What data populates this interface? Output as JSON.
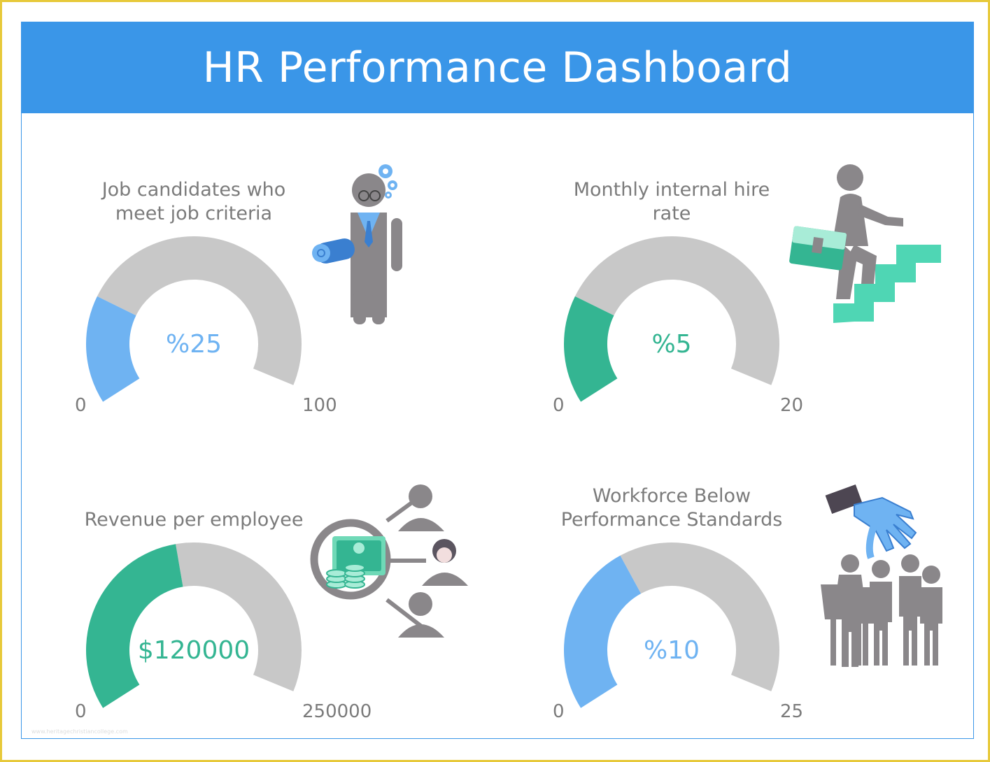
{
  "title": "HR Performance Dashboard",
  "colors": {
    "header": "#3a96e8",
    "track": "#c8c8c8",
    "blue": "#6fb3f2",
    "green": "#34b592",
    "label": "#7b7b7b"
  },
  "chart_data": [
    {
      "type": "gauge",
      "title": [
        "Job candidates who",
        "meet job criteria"
      ],
      "min": 0,
      "max": 100,
      "value": 25,
      "min_label": "0",
      "max_label": "100",
      "value_label": "%25",
      "color": "blue",
      "icon": "businessman-with-blueprint-icon"
    },
    {
      "type": "gauge",
      "title": [
        "Monthly internal hire",
        "rate"
      ],
      "min": 0,
      "max": 20,
      "value": 5,
      "min_label": "0",
      "max_label": "20",
      "value_label": "%5",
      "color": "green",
      "icon": "man-climbing-stairs-icon"
    },
    {
      "type": "gauge",
      "title": [
        "Revenue per employee"
      ],
      "min": 0,
      "max": 250000,
      "value": 120000,
      "min_label": "0",
      "max_label": "250000",
      "value_label": "$120000",
      "color": "green",
      "icon": "money-magnifier-people-icon"
    },
    {
      "type": "gauge",
      "title": [
        "Workforce Below",
        "Performance Standards"
      ],
      "min": 0,
      "max": 25,
      "value": 10,
      "min_label": "0",
      "max_label": "25",
      "value_label": "%10",
      "color": "blue",
      "icon": "hand-picking-crowd-icon"
    }
  ]
}
